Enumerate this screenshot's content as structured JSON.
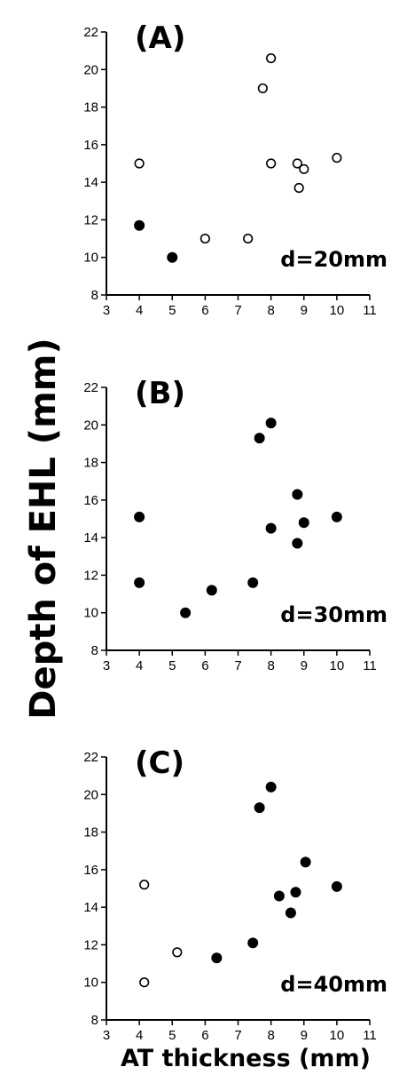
{
  "ylabel": "Depth of EHL (mm)",
  "xlabel": "AT thickness (mm)",
  "chart_data": [
    {
      "type": "scatter",
      "panel_label": "(A)",
      "annotation": "d=20mm",
      "xlim": [
        3,
        11
      ],
      "ylim": [
        8,
        22
      ],
      "x_ticks": [
        "3",
        "4",
        "5",
        "6",
        "7",
        "8",
        "9",
        "10",
        "11"
      ],
      "y_ticks": [
        "8",
        "10",
        "12",
        "14",
        "16",
        "18",
        "20",
        "22"
      ],
      "series": [
        {
          "marker": "filled",
          "color": "#000000",
          "points": [
            [
              4.0,
              11.7
            ],
            [
              5.0,
              10.0
            ]
          ]
        },
        {
          "marker": "open",
          "color": "#000000",
          "points": [
            [
              4.0,
              15.0
            ],
            [
              6.0,
              11.0
            ],
            [
              7.3,
              11.0
            ],
            [
              7.75,
              19.0
            ],
            [
              8.0,
              20.6
            ],
            [
              8.0,
              15.0
            ],
            [
              8.8,
              15.0
            ],
            [
              8.85,
              13.7
            ],
            [
              9.0,
              14.7
            ],
            [
              10.0,
              15.3
            ]
          ]
        }
      ]
    },
    {
      "type": "scatter",
      "panel_label": "(B)",
      "annotation": "d=30mm",
      "xlim": [
        3,
        11
      ],
      "ylim": [
        8,
        22
      ],
      "x_ticks": [
        "3",
        "4",
        "5",
        "6",
        "7",
        "8",
        "9",
        "10",
        "11"
      ],
      "y_ticks": [
        "8",
        "10",
        "12",
        "14",
        "16",
        "18",
        "20",
        "22"
      ],
      "series": [
        {
          "marker": "filled",
          "color": "#000000",
          "points": [
            [
              4.0,
              15.1
            ],
            [
              4.0,
              11.6
            ],
            [
              5.4,
              10.0
            ],
            [
              6.2,
              11.2
            ],
            [
              7.45,
              11.6
            ],
            [
              7.65,
              19.3
            ],
            [
              8.0,
              20.1
            ],
            [
              8.0,
              14.5
            ],
            [
              8.8,
              16.3
            ],
            [
              8.8,
              13.7
            ],
            [
              9.0,
              14.8
            ],
            [
              10.0,
              15.1
            ]
          ]
        }
      ]
    },
    {
      "type": "scatter",
      "panel_label": "(C)",
      "annotation": "d=40mm",
      "xlim": [
        3,
        11
      ],
      "ylim": [
        8,
        22
      ],
      "x_ticks": [
        "3",
        "4",
        "5",
        "6",
        "7",
        "8",
        "9",
        "10",
        "11"
      ],
      "y_ticks": [
        "8",
        "10",
        "12",
        "14",
        "16",
        "18",
        "20",
        "22"
      ],
      "series": [
        {
          "marker": "open",
          "color": "#000000",
          "points": [
            [
              4.15,
              15.2
            ],
            [
              4.15,
              10.0
            ],
            [
              5.15,
              11.6
            ]
          ]
        },
        {
          "marker": "filled",
          "color": "#000000",
          "points": [
            [
              6.35,
              11.3
            ],
            [
              7.45,
              12.1
            ],
            [
              7.65,
              19.3
            ],
            [
              8.0,
              20.4
            ],
            [
              8.25,
              14.6
            ],
            [
              8.6,
              13.7
            ],
            [
              8.75,
              14.8
            ],
            [
              9.05,
              16.4
            ],
            [
              10.0,
              15.1
            ]
          ]
        }
      ]
    }
  ]
}
